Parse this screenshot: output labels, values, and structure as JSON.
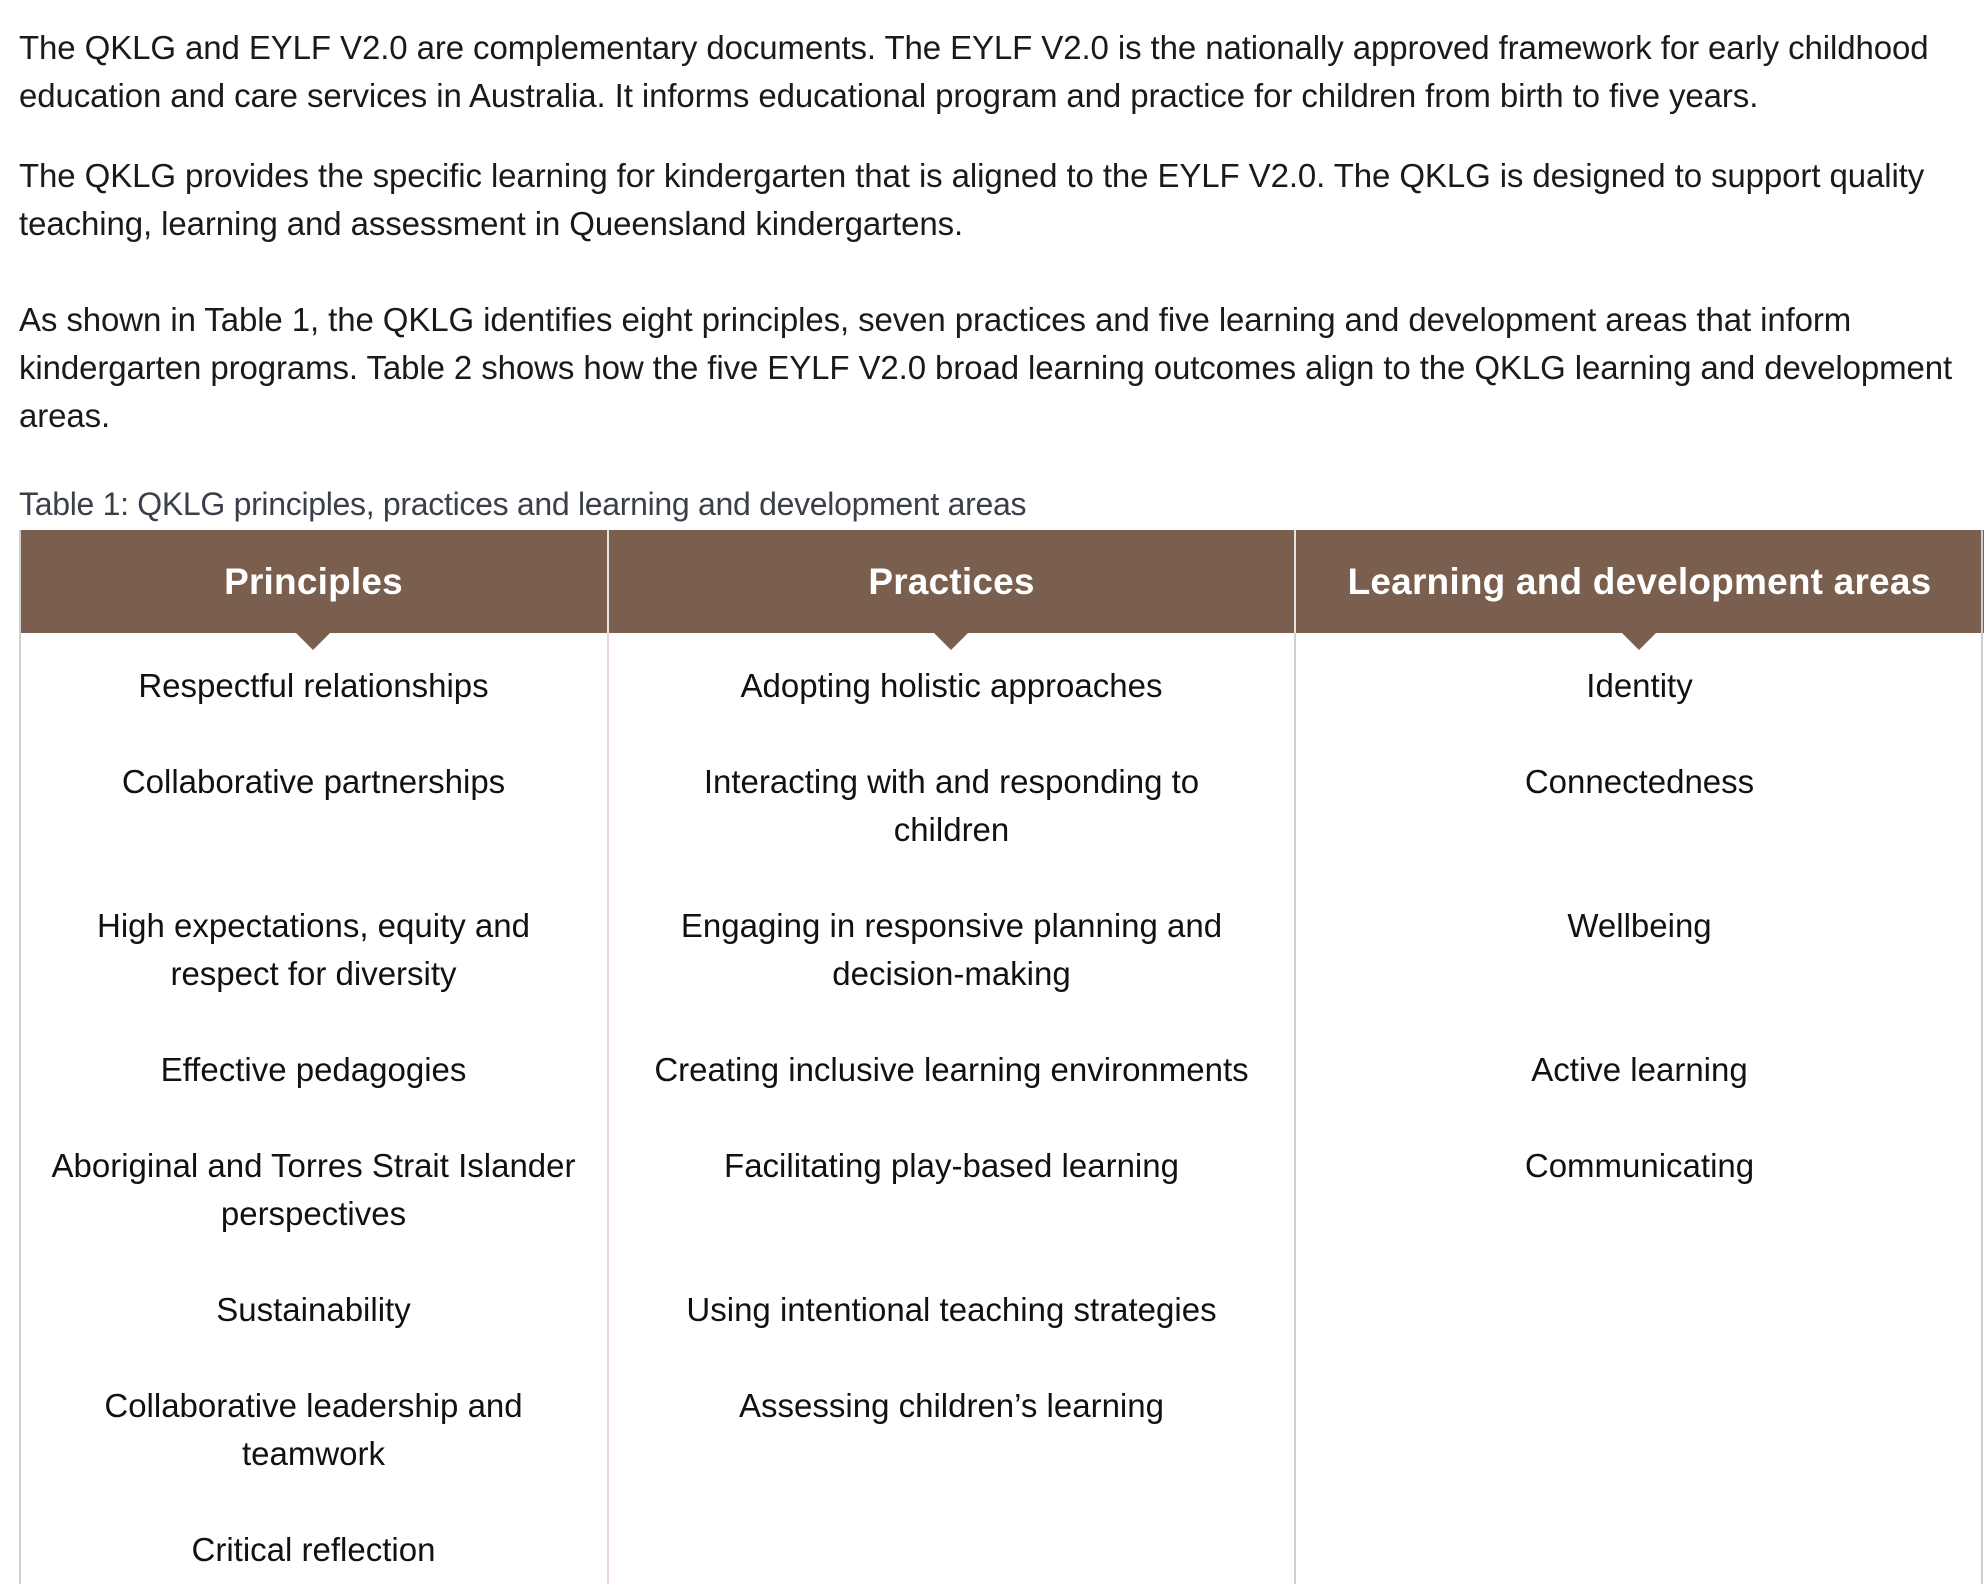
{
  "paragraphs": [
    "The QKLG and EYLF V2.0 are complementary documents. The EYLF V2.0 is the nationally approved framework for early childhood education and care services in Australia. It informs educational program and practice for children from birth to five years.",
    "The QKLG provides the specific learning for kindergarten that is aligned to the EYLF V2.0. The QKLG is designed to support quality teaching, learning and assessment in Queensland kindergartens.",
    "As shown in Table 1, the QKLG identifies eight principles, seven practices and five learning and development areas that inform kindergarten programs. Table 2 shows how the five EYLF V2.0 broad learning outcomes align to the QKLG learning and development areas."
  ],
  "table": {
    "caption": "Table 1: QKLG principles, practices and learning and development areas",
    "colors": {
      "header_bg": "#7a5f4f",
      "header_text": "#ffffff"
    },
    "columns": [
      {
        "header": "Principles",
        "items": [
          "Respectful relationships",
          "Collaborative partnerships",
          "High expectations, equity and respect for diversity",
          "Effective pedagogies",
          "Aboriginal and Torres Strait Islander perspectives",
          "Sustainability",
          "Collaborative leadership and teamwork",
          "Critical reflection"
        ]
      },
      {
        "header": "Practices",
        "items": [
          "Adopting holistic approaches",
          "Interacting with and responding to children",
          "Engaging in responsive planning and decision-making",
          "Creating inclusive learning environments",
          "Facilitating play-based learning",
          "Using intentional teaching strategies",
          "Assessing children’s learning"
        ]
      },
      {
        "header": "Learning and development areas",
        "items": [
          "Identity",
          "Connectedness",
          "Wellbeing",
          "Active learning",
          "Communicating"
        ]
      }
    ]
  }
}
